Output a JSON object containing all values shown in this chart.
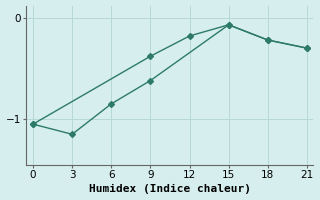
{
  "line1_x": [
    0,
    9,
    12,
    15,
    18,
    21
  ],
  "line1_y": [
    -1.05,
    -0.38,
    -0.18,
    -0.07,
    -0.22,
    -0.3
  ],
  "line2_x": [
    0,
    3,
    6,
    9,
    15,
    18,
    21
  ],
  "line2_y": [
    -1.05,
    -1.15,
    -0.85,
    -0.62,
    -0.07,
    -0.22,
    -0.3
  ],
  "line_color": "#2d7a6b",
  "bg_color": "#d6eeed",
  "grid_color": "#b8d8d6",
  "xlabel": "Humidex (Indice chaleur)",
  "yticks": [
    0,
    -1
  ],
  "xticks": [
    0,
    3,
    6,
    9,
    12,
    15,
    18,
    21
  ],
  "xlim": [
    -0.5,
    21.5
  ],
  "ylim": [
    -1.45,
    0.12
  ],
  "marker": "D",
  "markersize": 3,
  "linewidth": 1.0,
  "xlabel_fontsize": 8,
  "tick_fontsize": 7.5,
  "spine_color": "#666666"
}
